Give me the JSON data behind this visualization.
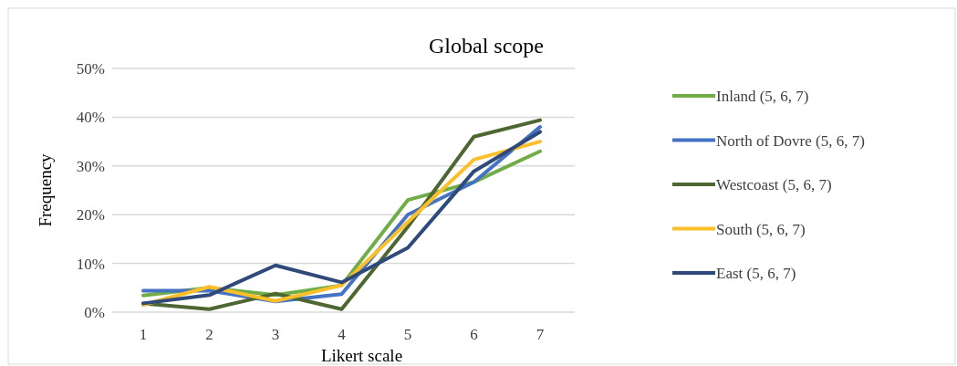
{
  "chart_data": {
    "type": "line",
    "title": "Global scope",
    "xlabel": "Likert scale",
    "ylabel": "Frequency",
    "categories": [
      "1",
      "2",
      "3",
      "4",
      "5",
      "6",
      "7"
    ],
    "series": [
      {
        "name": "Inland (5, 6, 7)",
        "color": "#70ad47",
        "values": [
          3.4,
          5,
          3.5,
          5.5,
          23,
          26.7,
          33
        ]
      },
      {
        "name": "North of Dovre (5, 6, 7)",
        "color": "#4472c4",
        "values": [
          4.4,
          4.4,
          2.2,
          3.7,
          20,
          26.7,
          38
        ]
      },
      {
        "name": "Westcoast (5, 6, 7)",
        "color": "#4e6632",
        "values": [
          1.8,
          0.6,
          3.8,
          0.6,
          17.5,
          36,
          39.4
        ]
      },
      {
        "name": "South (5, 6, 7)",
        "color": "#fbbf2a",
        "values": [
          1.5,
          5.2,
          2.3,
          5.5,
          18.5,
          31.3,
          35
        ]
      },
      {
        "name": "East (5, 6, 7)",
        "color": "#2f4a7a",
        "values": [
          1.8,
          3.5,
          9.6,
          6.1,
          13.2,
          28.9,
          37
        ]
      }
    ],
    "ylim": [
      0,
      50
    ],
    "yticks": [
      {
        "value": 0,
        "label": "0%"
      },
      {
        "value": 10,
        "label": "10%"
      },
      {
        "value": 20,
        "label": "20%"
      },
      {
        "value": 30,
        "label": "30%"
      },
      {
        "value": 40,
        "label": "40%"
      },
      {
        "value": 50,
        "label": "50%"
      }
    ],
    "grid": "y",
    "legend": "right",
    "marker": "none",
    "line_style": "solid"
  }
}
